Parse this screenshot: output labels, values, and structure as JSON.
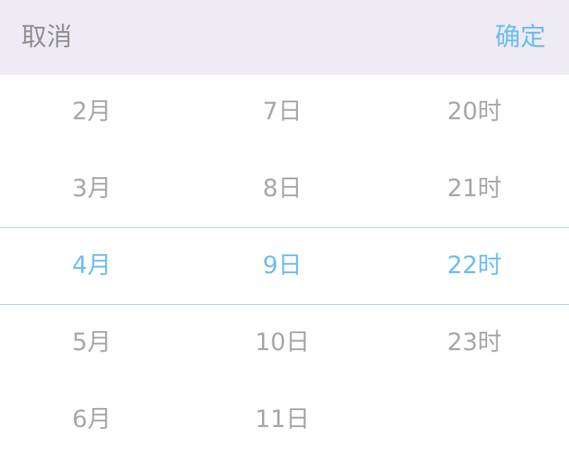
{
  "toolbar": {
    "cancel_label": "取消",
    "confirm_label": "确定"
  },
  "picker": {
    "months": [
      "2月",
      "3月",
      "4月",
      "5月",
      "6月"
    ],
    "days": [
      "7日",
      "8日",
      "9日",
      "10日",
      "11日"
    ],
    "hours": [
      "20时",
      "21时",
      "22时",
      "23时"
    ],
    "selected": {
      "month": "4月",
      "day": "9日",
      "hour": "22时"
    }
  },
  "colors": {
    "accent": "#6bbdf2",
    "toolbar_background": "#eeebf4",
    "unselected_text": "#a7a7a7",
    "cancel_text": "#8f8f8f"
  }
}
